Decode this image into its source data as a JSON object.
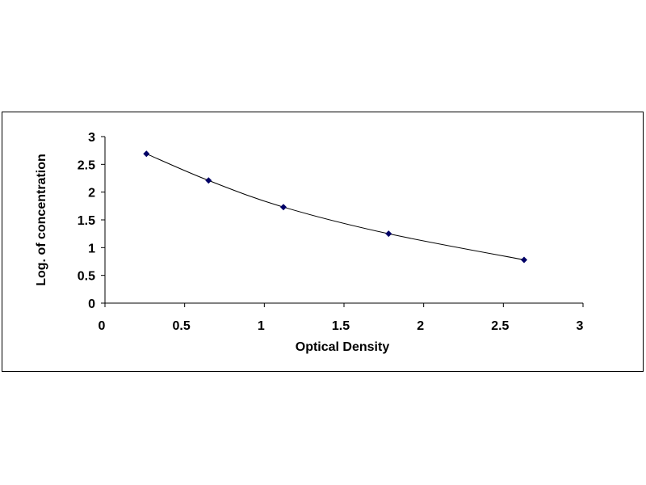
{
  "chart_data": {
    "type": "scatter",
    "xlabel": "Optical Density",
    "ylabel": "Log. of concentration",
    "xlim": [
      0,
      3
    ],
    "ylim": [
      0,
      3
    ],
    "x_ticks": [
      "0",
      "0.5",
      "1",
      "1.5",
      "2",
      "2.5",
      "3"
    ],
    "y_ticks": [
      "0",
      "0.5",
      "1",
      "1.5",
      "2",
      "2.5",
      "3"
    ],
    "grid": false,
    "legend": "none",
    "series": [
      {
        "x": [
          0.26,
          0.65,
          1.12,
          1.78,
          2.63
        ],
        "y": [
          2.69,
          2.21,
          1.73,
          1.25,
          0.78
        ],
        "marker": "diamond",
        "color": "#000066",
        "trendline": "smooth"
      }
    ]
  }
}
